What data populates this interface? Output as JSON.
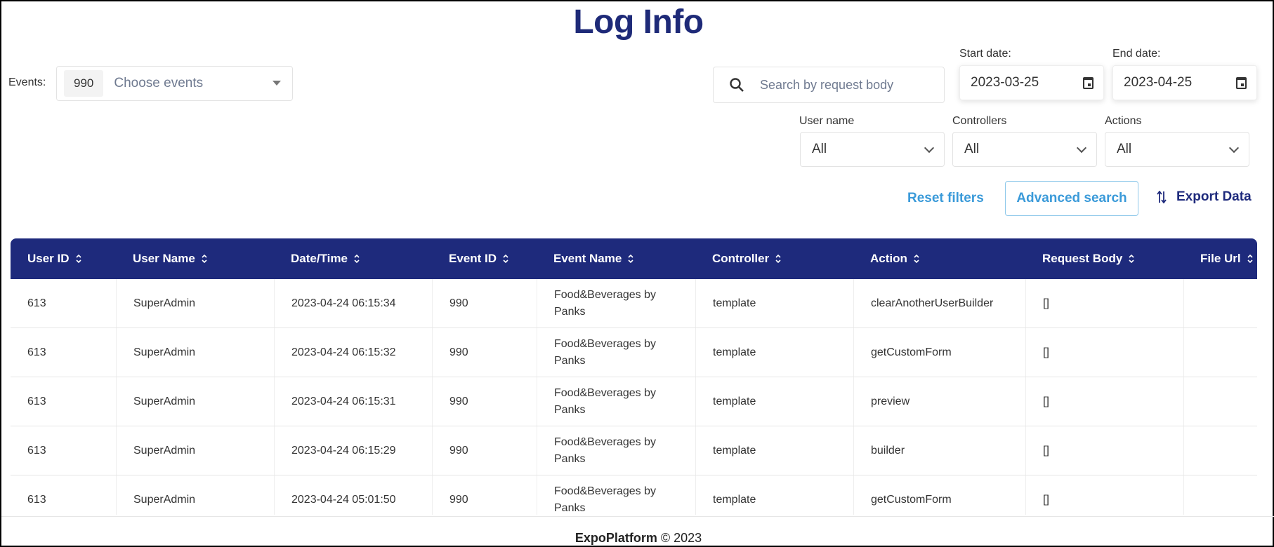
{
  "title": "Log Info",
  "filters": {
    "events_label": "Events:",
    "events_tag": "990",
    "events_placeholder": "Choose events",
    "search_placeholder": "Search by request body",
    "start_label": "Start date:",
    "start_value": "2023-03-25",
    "end_label": "End date:",
    "end_value": "2023-04-25",
    "user_label": "User name",
    "user_value": "All",
    "controllers_label": "Controllers",
    "controllers_value": "All",
    "actions_label": "Actions",
    "actions_value": "All",
    "reset": "Reset filters",
    "advanced": "Advanced search",
    "export": "Export Data"
  },
  "colors": {
    "primary": "#1e2a7c",
    "link": "#3a9ad9"
  },
  "table": {
    "columns": [
      "User ID",
      "User Name",
      "Date/Time",
      "Event ID",
      "Event Name",
      "Controller",
      "Action",
      "Request Body",
      "File Url"
    ],
    "rows": [
      [
        "613",
        "SuperAdmin",
        "2023-04-24 06:15:34",
        "990",
        "Food&Beverages by Panks",
        "template",
        "clearAnotherUserBuilder",
        "[]",
        ""
      ],
      [
        "613",
        "SuperAdmin",
        "2023-04-24 06:15:32",
        "990",
        "Food&Beverages by Panks",
        "template",
        "getCustomForm",
        "[]",
        ""
      ],
      [
        "613",
        "SuperAdmin",
        "2023-04-24 06:15:31",
        "990",
        "Food&Beverages by Panks",
        "template",
        "preview",
        "[]",
        ""
      ],
      [
        "613",
        "SuperAdmin",
        "2023-04-24 06:15:29",
        "990",
        "Food&Beverages by Panks",
        "template",
        "builder",
        "[]",
        ""
      ],
      [
        "613",
        "SuperAdmin",
        "2023-04-24 05:01:50",
        "990",
        "Food&Beverages by Panks",
        "template",
        "getCustomForm",
        "[]",
        ""
      ]
    ]
  },
  "footer": {
    "brand": "ExpoPlatform",
    "copy": " © 2023"
  }
}
